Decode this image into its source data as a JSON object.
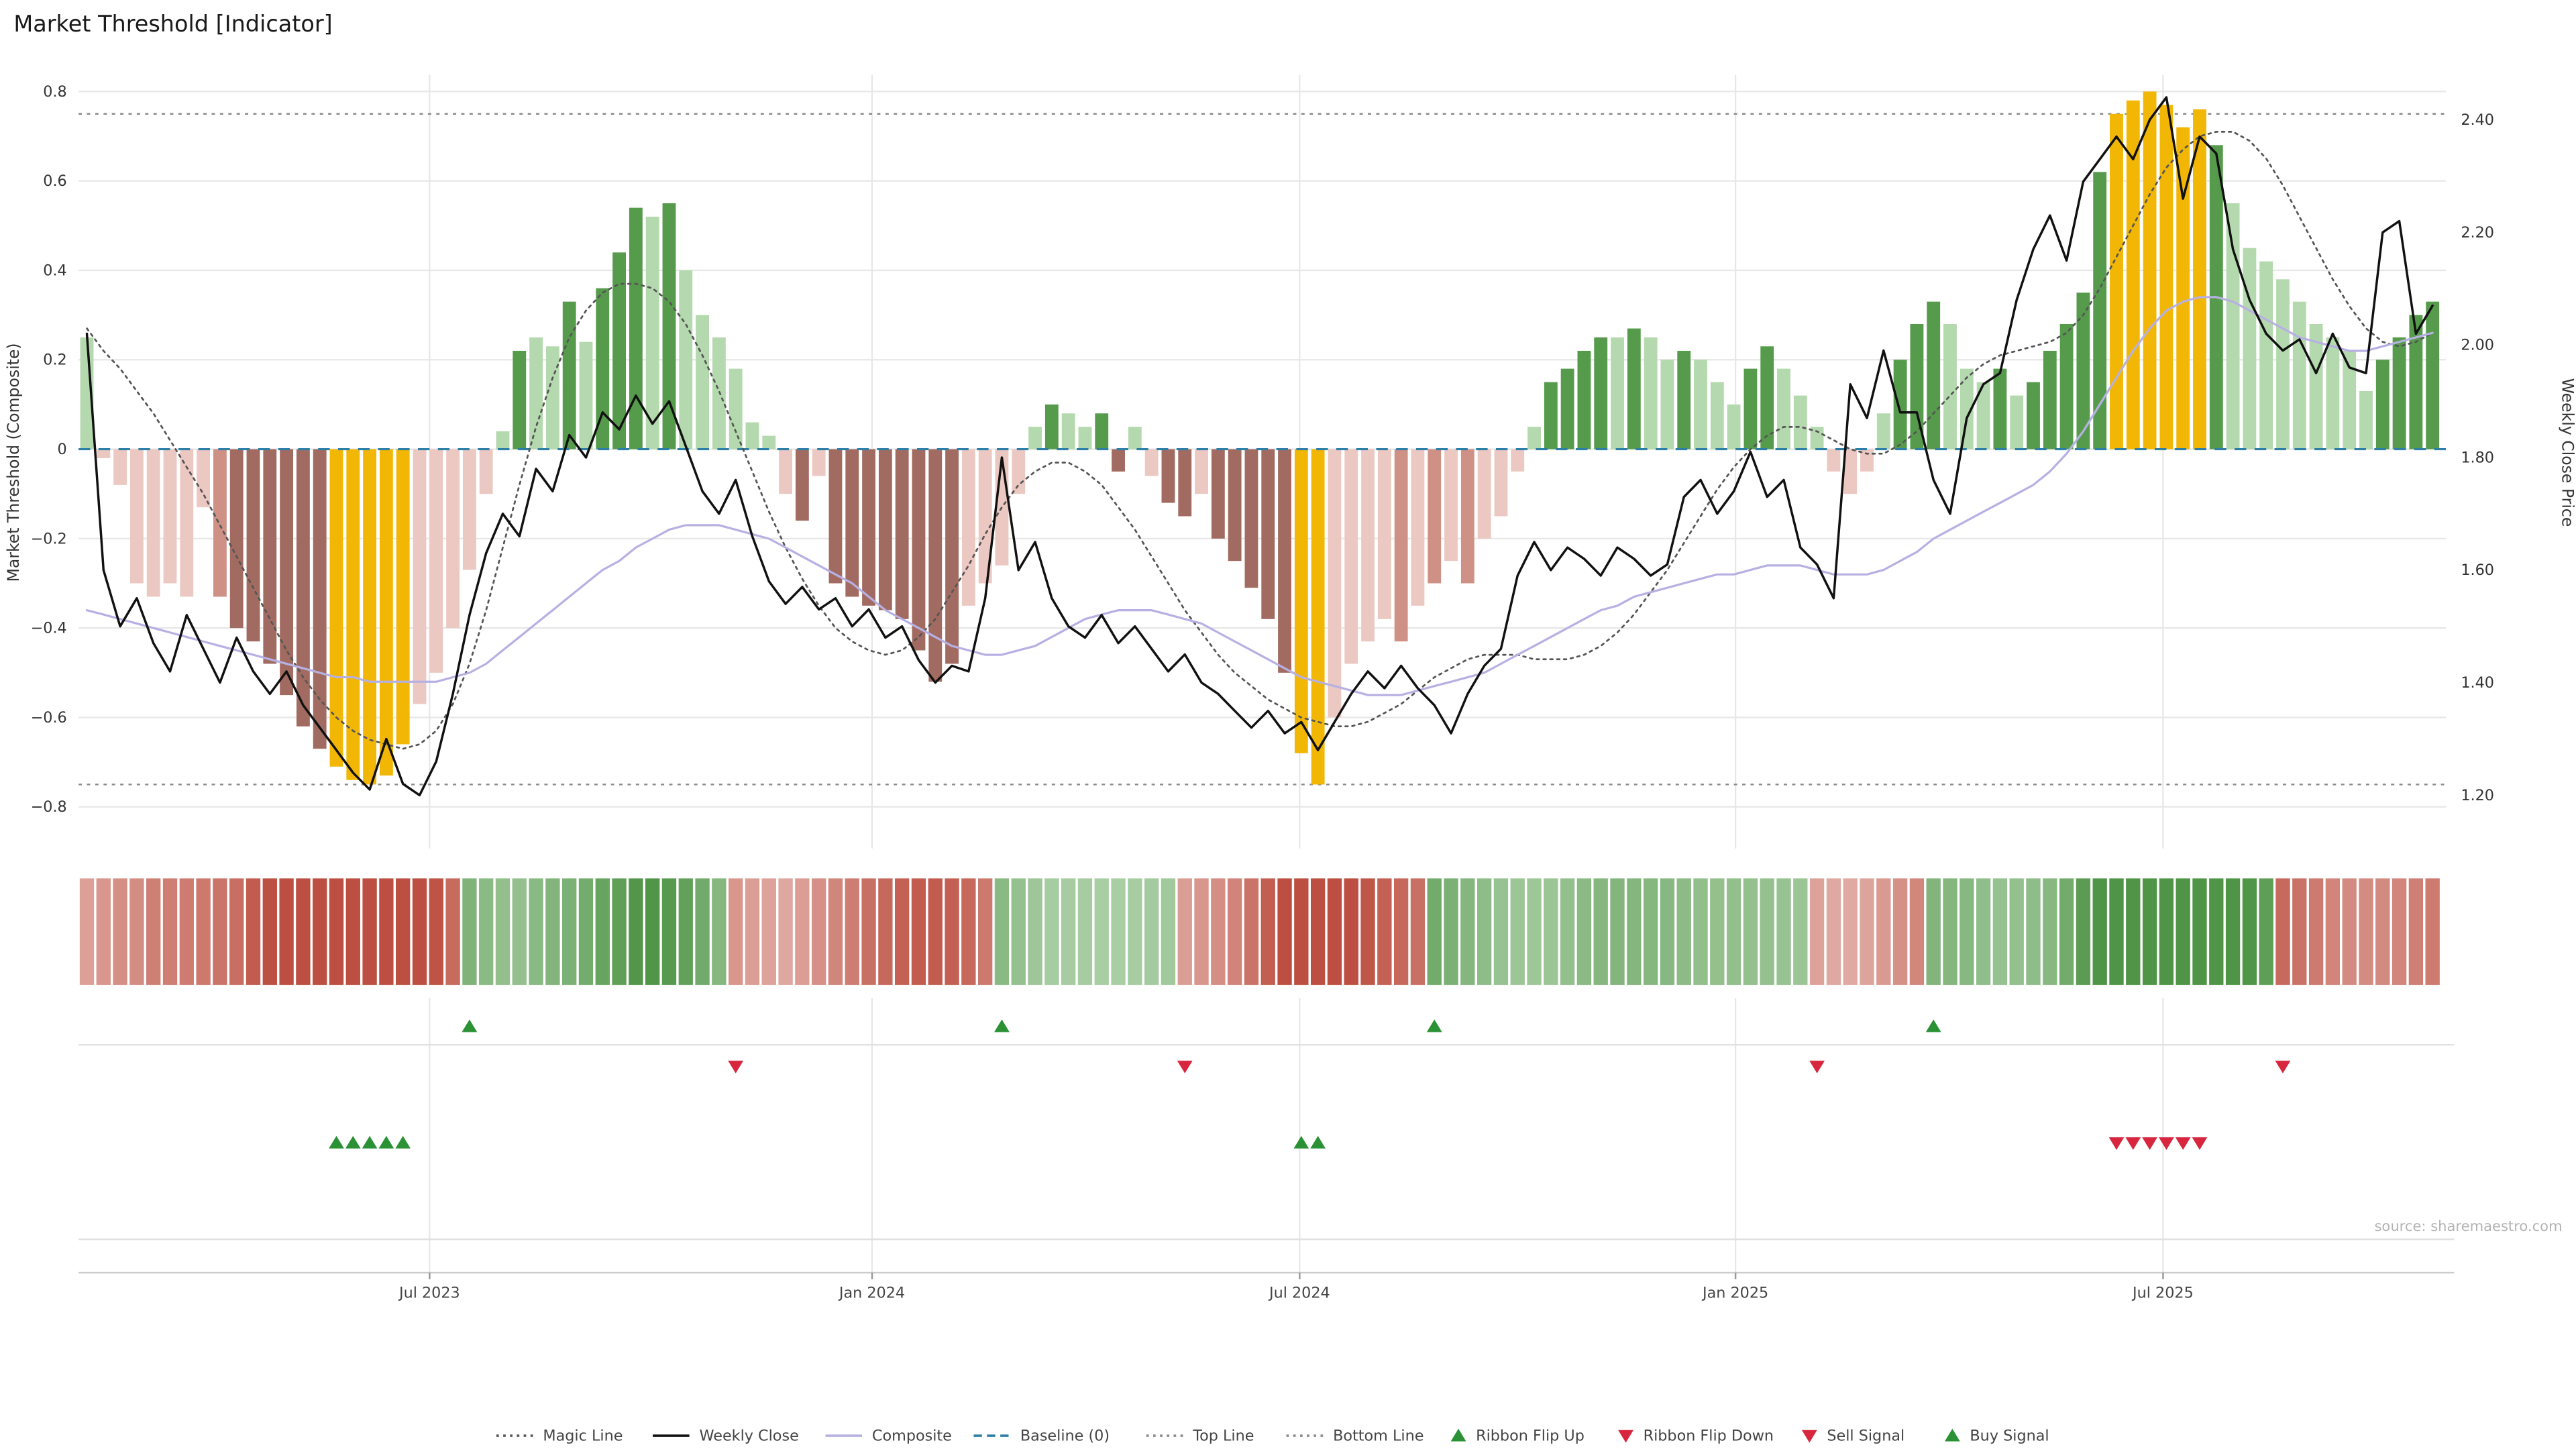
{
  "title": "Market Threshold [Indicator]",
  "source": "source: sharemaestro.com",
  "axes": {
    "left_label": "Market Threshold (Composite)",
    "right_label": "Weekly Close Price",
    "left_ticks": [
      {
        "label": "0.8",
        "value": 0.8
      },
      {
        "label": "0.6",
        "value": 0.6
      },
      {
        "label": "0.4",
        "value": 0.4
      },
      {
        "label": "0.2",
        "value": 0.2
      },
      {
        "label": "0",
        "value": 0
      },
      {
        "label": "−0.2",
        "value": -0.2
      },
      {
        "label": "−0.4",
        "value": -0.4
      },
      {
        "label": "−0.6",
        "value": -0.6
      },
      {
        "label": "−0.8",
        "value": -0.8
      }
    ],
    "right_ticks": [
      {
        "label": "2.40",
        "value": 2.4
      },
      {
        "label": "2.20",
        "value": 2.2
      },
      {
        "label": "2.00",
        "value": 2.0
      },
      {
        "label": "1.80",
        "value": 1.8
      },
      {
        "label": "1.60",
        "value": 1.6
      },
      {
        "label": "1.40",
        "value": 1.4
      },
      {
        "label": "1.20",
        "value": 1.2
      }
    ],
    "x_ticks": [
      {
        "label": "Jul 2023",
        "week": 20.6
      },
      {
        "label": "Jan 2024",
        "week": 47.2
      },
      {
        "label": "Jul 2024",
        "week": 72.9
      },
      {
        "label": "Jan 2025",
        "week": 99.1
      },
      {
        "label": "Jul 2025",
        "week": 124.8
      }
    ]
  },
  "chart_data": {
    "type": "bar+line combo (weekly indicator with price overlay, ribbon and signal markers)",
    "x_unit": "week",
    "weeks": 142,
    "left_ylim": [
      -0.8,
      0.8
    ],
    "right_ylim": [
      1.2,
      2.4
    ],
    "baseline": 0,
    "top_line": 0.75,
    "bottom_line": -0.75,
    "threshold_bars": {
      "values": [
        0.25,
        -0.02,
        -0.08,
        -0.3,
        -0.33,
        -0.3,
        -0.33,
        -0.13,
        -0.33,
        -0.4,
        -0.43,
        -0.48,
        -0.55,
        -0.62,
        -0.67,
        -0.71,
        -0.74,
        -0.75,
        -0.73,
        -0.66,
        -0.57,
        -0.5,
        -0.4,
        -0.27,
        -0.1,
        0.04,
        0.22,
        0.25,
        0.23,
        0.33,
        0.24,
        0.36,
        0.44,
        0.54,
        0.52,
        0.55,
        0.4,
        0.3,
        0.25,
        0.18,
        0.06,
        0.03,
        -0.1,
        -0.16,
        -0.06,
        -0.3,
        -0.33,
        -0.35,
        -0.36,
        -0.38,
        -0.45,
        -0.52,
        -0.48,
        -0.35,
        -0.3,
        -0.26,
        -0.1,
        0.05,
        0.1,
        0.08,
        0.05,
        0.08,
        -0.05,
        0.05,
        -0.06,
        -0.12,
        -0.15,
        -0.1,
        -0.2,
        -0.25,
        -0.31,
        -0.38,
        -0.5,
        -0.68,
        -0.75,
        -0.6,
        -0.48,
        -0.43,
        -0.38,
        -0.43,
        -0.35,
        -0.3,
        -0.25,
        -0.3,
        -0.2,
        -0.15,
        -0.05,
        0.05,
        0.15,
        0.18,
        0.22,
        0.25,
        0.25,
        0.27,
        0.25,
        0.2,
        0.22,
        0.2,
        0.15,
        0.1,
        0.18,
        0.23,
        0.18,
        0.12,
        0.05,
        -0.05,
        -0.1,
        -0.05,
        0.08,
        0.2,
        0.28,
        0.33,
        0.28,
        0.18,
        0.15,
        0.18,
        0.12,
        0.15,
        0.22,
        0.28,
        0.35,
        0.62,
        0.75,
        0.78,
        0.8,
        0.77,
        0.72,
        0.76,
        0.68,
        0.55,
        0.45,
        0.42,
        0.38,
        0.33,
        0.28,
        0.25,
        0.22,
        0.13,
        0.2,
        0.25,
        0.3,
        0.33
      ],
      "colors": [
        "lg",
        "lr",
        "lr",
        "lr",
        "lr",
        "lr",
        "lr",
        "lr",
        "mr",
        "dr",
        "dr",
        "dr",
        "dr",
        "dr",
        "dr",
        "au",
        "au",
        "au",
        "au",
        "au",
        "lr",
        "lr",
        "lr",
        "lr",
        "lr",
        "lg",
        "dg",
        "lg",
        "lg",
        "dg",
        "lg",
        "dg",
        "dg",
        "dg",
        "lg",
        "dg",
        "lg",
        "lg",
        "lg",
        "lg",
        "lg",
        "lg",
        "lr",
        "dr",
        "lr",
        "dr",
        "dr",
        "dr",
        "dr",
        "dr",
        "dr",
        "dr",
        "dr",
        "lr",
        "lr",
        "lr",
        "lr",
        "lg",
        "dg",
        "lg",
        "lg",
        "dg",
        "dr",
        "lg",
        "lr",
        "dr",
        "dr",
        "lr",
        "dr",
        "dr",
        "dr",
        "dr",
        "dr",
        "au",
        "au",
        "lr",
        "lr",
        "lr",
        "lr",
        "mr",
        "lr",
        "mr",
        "lr",
        "mr",
        "lr",
        "lr",
        "lr",
        "lg",
        "dg",
        "dg",
        "dg",
        "dg",
        "lg",
        "dg",
        "lg",
        "lg",
        "dg",
        "lg",
        "lg",
        "lg",
        "dg",
        "dg",
        "lg",
        "lg",
        "lg",
        "lr",
        "lr",
        "lr",
        "lg",
        "dg",
        "dg",
        "dg",
        "lg",
        "lg",
        "lg",
        "dg",
        "lg",
        "dg",
        "dg",
        "dg",
        "dg",
        "dg",
        "au",
        "au",
        "au",
        "au",
        "au",
        "au",
        "dg",
        "lg",
        "lg",
        "lg",
        "lg",
        "lg",
        "lg",
        "lg",
        "lg",
        "lg",
        "dg",
        "dg",
        "dg",
        "dg"
      ]
    },
    "weekly_close": [
      2.02,
      1.6,
      1.5,
      1.55,
      1.47,
      1.42,
      1.52,
      1.46,
      1.4,
      1.48,
      1.42,
      1.38,
      1.42,
      1.36,
      1.32,
      1.28,
      1.24,
      1.21,
      1.3,
      1.22,
      1.2,
      1.26,
      1.38,
      1.52,
      1.63,
      1.7,
      1.66,
      1.78,
      1.74,
      1.84,
      1.8,
      1.88,
      1.85,
      1.91,
      1.86,
      1.9,
      1.82,
      1.74,
      1.7,
      1.76,
      1.66,
      1.58,
      1.54,
      1.57,
      1.53,
      1.55,
      1.5,
      1.53,
      1.48,
      1.5,
      1.44,
      1.4,
      1.43,
      1.42,
      1.55,
      1.8,
      1.6,
      1.65,
      1.55,
      1.5,
      1.48,
      1.52,
      1.47,
      1.5,
      1.46,
      1.42,
      1.45,
      1.4,
      1.38,
      1.35,
      1.32,
      1.35,
      1.31,
      1.33,
      1.28,
      1.33,
      1.38,
      1.42,
      1.39,
      1.43,
      1.39,
      1.36,
      1.31,
      1.38,
      1.43,
      1.46,
      1.59,
      1.65,
      1.6,
      1.64,
      1.62,
      1.59,
      1.64,
      1.62,
      1.59,
      1.61,
      1.73,
      1.76,
      1.7,
      1.74,
      1.81,
      1.73,
      1.76,
      1.64,
      1.61,
      1.55,
      1.93,
      1.87,
      1.99,
      1.88,
      1.88,
      1.76,
      1.7,
      1.87,
      1.93,
      1.95,
      2.08,
      2.17,
      2.23,
      2.15,
      2.29,
      2.33,
      2.37,
      2.33,
      2.4,
      2.44,
      2.26,
      2.37,
      2.34,
      2.17,
      2.08,
      2.02,
      1.99,
      2.01,
      1.95,
      2.02,
      1.96,
      1.95,
      2.2,
      2.22,
      2.02,
      2.07
    ],
    "composite": [
      -0.36,
      -0.37,
      -0.38,
      -0.39,
      -0.4,
      -0.41,
      -0.42,
      -0.43,
      -0.44,
      -0.45,
      -0.46,
      -0.47,
      -0.48,
      -0.49,
      -0.5,
      -0.51,
      -0.51,
      -0.52,
      -0.52,
      -0.52,
      -0.52,
      -0.52,
      -0.51,
      -0.5,
      -0.48,
      -0.45,
      -0.42,
      -0.39,
      -0.36,
      -0.33,
      -0.3,
      -0.27,
      -0.25,
      -0.22,
      -0.2,
      -0.18,
      -0.17,
      -0.17,
      -0.17,
      -0.18,
      -0.19,
      -0.2,
      -0.22,
      -0.24,
      -0.26,
      -0.28,
      -0.3,
      -0.33,
      -0.36,
      -0.38,
      -0.4,
      -0.42,
      -0.44,
      -0.45,
      -0.46,
      -0.46,
      -0.45,
      -0.44,
      -0.42,
      -0.4,
      -0.38,
      -0.37,
      -0.36,
      -0.36,
      -0.36,
      -0.37,
      -0.38,
      -0.39,
      -0.41,
      -0.43,
      -0.45,
      -0.47,
      -0.49,
      -0.51,
      -0.52,
      -0.53,
      -0.54,
      -0.55,
      -0.55,
      -0.55,
      -0.54,
      -0.53,
      -0.52,
      -0.51,
      -0.5,
      -0.48,
      -0.46,
      -0.44,
      -0.42,
      -0.4,
      -0.38,
      -0.36,
      -0.35,
      -0.33,
      -0.32,
      -0.31,
      -0.3,
      -0.29,
      -0.28,
      -0.28,
      -0.27,
      -0.26,
      -0.26,
      -0.26,
      -0.27,
      -0.28,
      -0.28,
      -0.28,
      -0.27,
      -0.25,
      -0.23,
      -0.2,
      -0.18,
      -0.16,
      -0.14,
      -0.12,
      -0.1,
      -0.08,
      -0.05,
      -0.01,
      0.04,
      0.1,
      0.16,
      0.22,
      0.27,
      0.31,
      0.33,
      0.34,
      0.34,
      0.33,
      0.31,
      0.29,
      0.27,
      0.25,
      0.24,
      0.23,
      0.22,
      0.22,
      0.23,
      0.24,
      0.25,
      0.26
    ],
    "magic_line": [
      0.27,
      0.22,
      0.18,
      0.13,
      0.08,
      0.02,
      -0.04,
      -0.1,
      -0.17,
      -0.24,
      -0.31,
      -0.38,
      -0.45,
      -0.51,
      -0.56,
      -0.6,
      -0.63,
      -0.65,
      -0.66,
      -0.67,
      -0.66,
      -0.63,
      -0.57,
      -0.48,
      -0.36,
      -0.22,
      -0.08,
      0.05,
      0.16,
      0.25,
      0.31,
      0.35,
      0.37,
      0.37,
      0.36,
      0.33,
      0.28,
      0.21,
      0.13,
      0.04,
      -0.05,
      -0.14,
      -0.22,
      -0.29,
      -0.35,
      -0.4,
      -0.43,
      -0.45,
      -0.46,
      -0.45,
      -0.42,
      -0.38,
      -0.32,
      -0.26,
      -0.19,
      -0.13,
      -0.08,
      -0.05,
      -0.03,
      -0.03,
      -0.05,
      -0.08,
      -0.13,
      -0.18,
      -0.24,
      -0.3,
      -0.36,
      -0.41,
      -0.46,
      -0.5,
      -0.53,
      -0.56,
      -0.58,
      -0.6,
      -0.61,
      -0.62,
      -0.62,
      -0.61,
      -0.59,
      -0.57,
      -0.54,
      -0.51,
      -0.49,
      -0.47,
      -0.46,
      -0.46,
      -0.46,
      -0.47,
      -0.47,
      -0.47,
      -0.46,
      -0.44,
      -0.41,
      -0.37,
      -0.32,
      -0.27,
      -0.21,
      -0.15,
      -0.09,
      -0.04,
      0.0,
      0.03,
      0.05,
      0.05,
      0.04,
      0.02,
      0.0,
      -0.01,
      -0.01,
      0.01,
      0.04,
      0.08,
      0.12,
      0.16,
      0.19,
      0.21,
      0.22,
      0.23,
      0.24,
      0.26,
      0.3,
      0.36,
      0.43,
      0.5,
      0.57,
      0.63,
      0.67,
      0.7,
      0.71,
      0.71,
      0.69,
      0.65,
      0.59,
      0.52,
      0.45,
      0.38,
      0.32,
      0.27,
      0.24,
      0.23,
      0.24,
      0.26
    ],
    "ribbon_segments": [
      {
        "from": 0,
        "to": 22,
        "dir": "down"
      },
      {
        "from": 23,
        "to": 38,
        "dir": "up"
      },
      {
        "from": 39,
        "to": 54,
        "dir": "down"
      },
      {
        "from": 55,
        "to": 65,
        "dir": "up"
      },
      {
        "from": 66,
        "to": 80,
        "dir": "down"
      },
      {
        "from": 81,
        "to": 103,
        "dir": "up"
      },
      {
        "from": 104,
        "to": 110,
        "dir": "down"
      },
      {
        "from": 111,
        "to": 131,
        "dir": "up"
      },
      {
        "from": 132,
        "to": 141,
        "dir": "down"
      }
    ],
    "signals": {
      "ribbon_flip_up_weeks": [
        23,
        55,
        81,
        111
      ],
      "ribbon_flip_down_weeks": [
        39,
        66,
        104,
        132
      ],
      "buy_weeks": [
        15,
        16,
        17,
        18,
        19,
        73,
        74
      ],
      "sell_weeks": [
        122,
        123,
        124,
        125,
        126,
        127
      ]
    }
  },
  "legend": [
    {
      "label": "Magic Line",
      "icon": "line-dotted",
      "color": "#555555"
    },
    {
      "label": "Weekly Close",
      "icon": "line-solid",
      "color": "#111111"
    },
    {
      "label": "Composite",
      "icon": "line-solid",
      "color": "#b7b0e3"
    },
    {
      "label": "Baseline (0)",
      "icon": "line-dashed",
      "color": "#2e7fa8"
    },
    {
      "label": "Top Line",
      "icon": "line-dotted",
      "color": "#8a8a8a"
    },
    {
      "label": "Bottom Line",
      "icon": "line-dotted",
      "color": "#8a8a8a"
    },
    {
      "label": "Ribbon Flip Up",
      "icon": "triangle-up",
      "color": "#2a9134"
    },
    {
      "label": "Ribbon Flip Down",
      "icon": "triangle-down",
      "color": "#d7263d"
    },
    {
      "label": "Sell Signal",
      "icon": "triangle-down",
      "color": "#d7263d"
    },
    {
      "label": "Buy Signal",
      "icon": "triangle-up",
      "color": "#2a9134"
    }
  ],
  "colors": {
    "bar_light_green": "#b5d9ae",
    "bar_dark_green": "#569b4c",
    "bar_light_red": "#ecc8c2",
    "bar_mid_red": "#cf9186",
    "bar_dark_red": "#a26b61",
    "bar_gold": "#f2b705",
    "close_line": "#111111",
    "composite_line": "#b7b0e3",
    "magic_line": "#555555",
    "baseline": "#2e7fa8",
    "top_bottom_line": "#8a8a8a",
    "grid": "#e7e7e7",
    "up_marker": "#2a9134",
    "down_marker": "#d7263d",
    "ribbon_red_dark": "#bc4f41",
    "ribbon_red_light": "#f3dbd7",
    "ribbon_green_dark": "#4f9447",
    "ribbon_green_light": "#d8ecd4"
  }
}
